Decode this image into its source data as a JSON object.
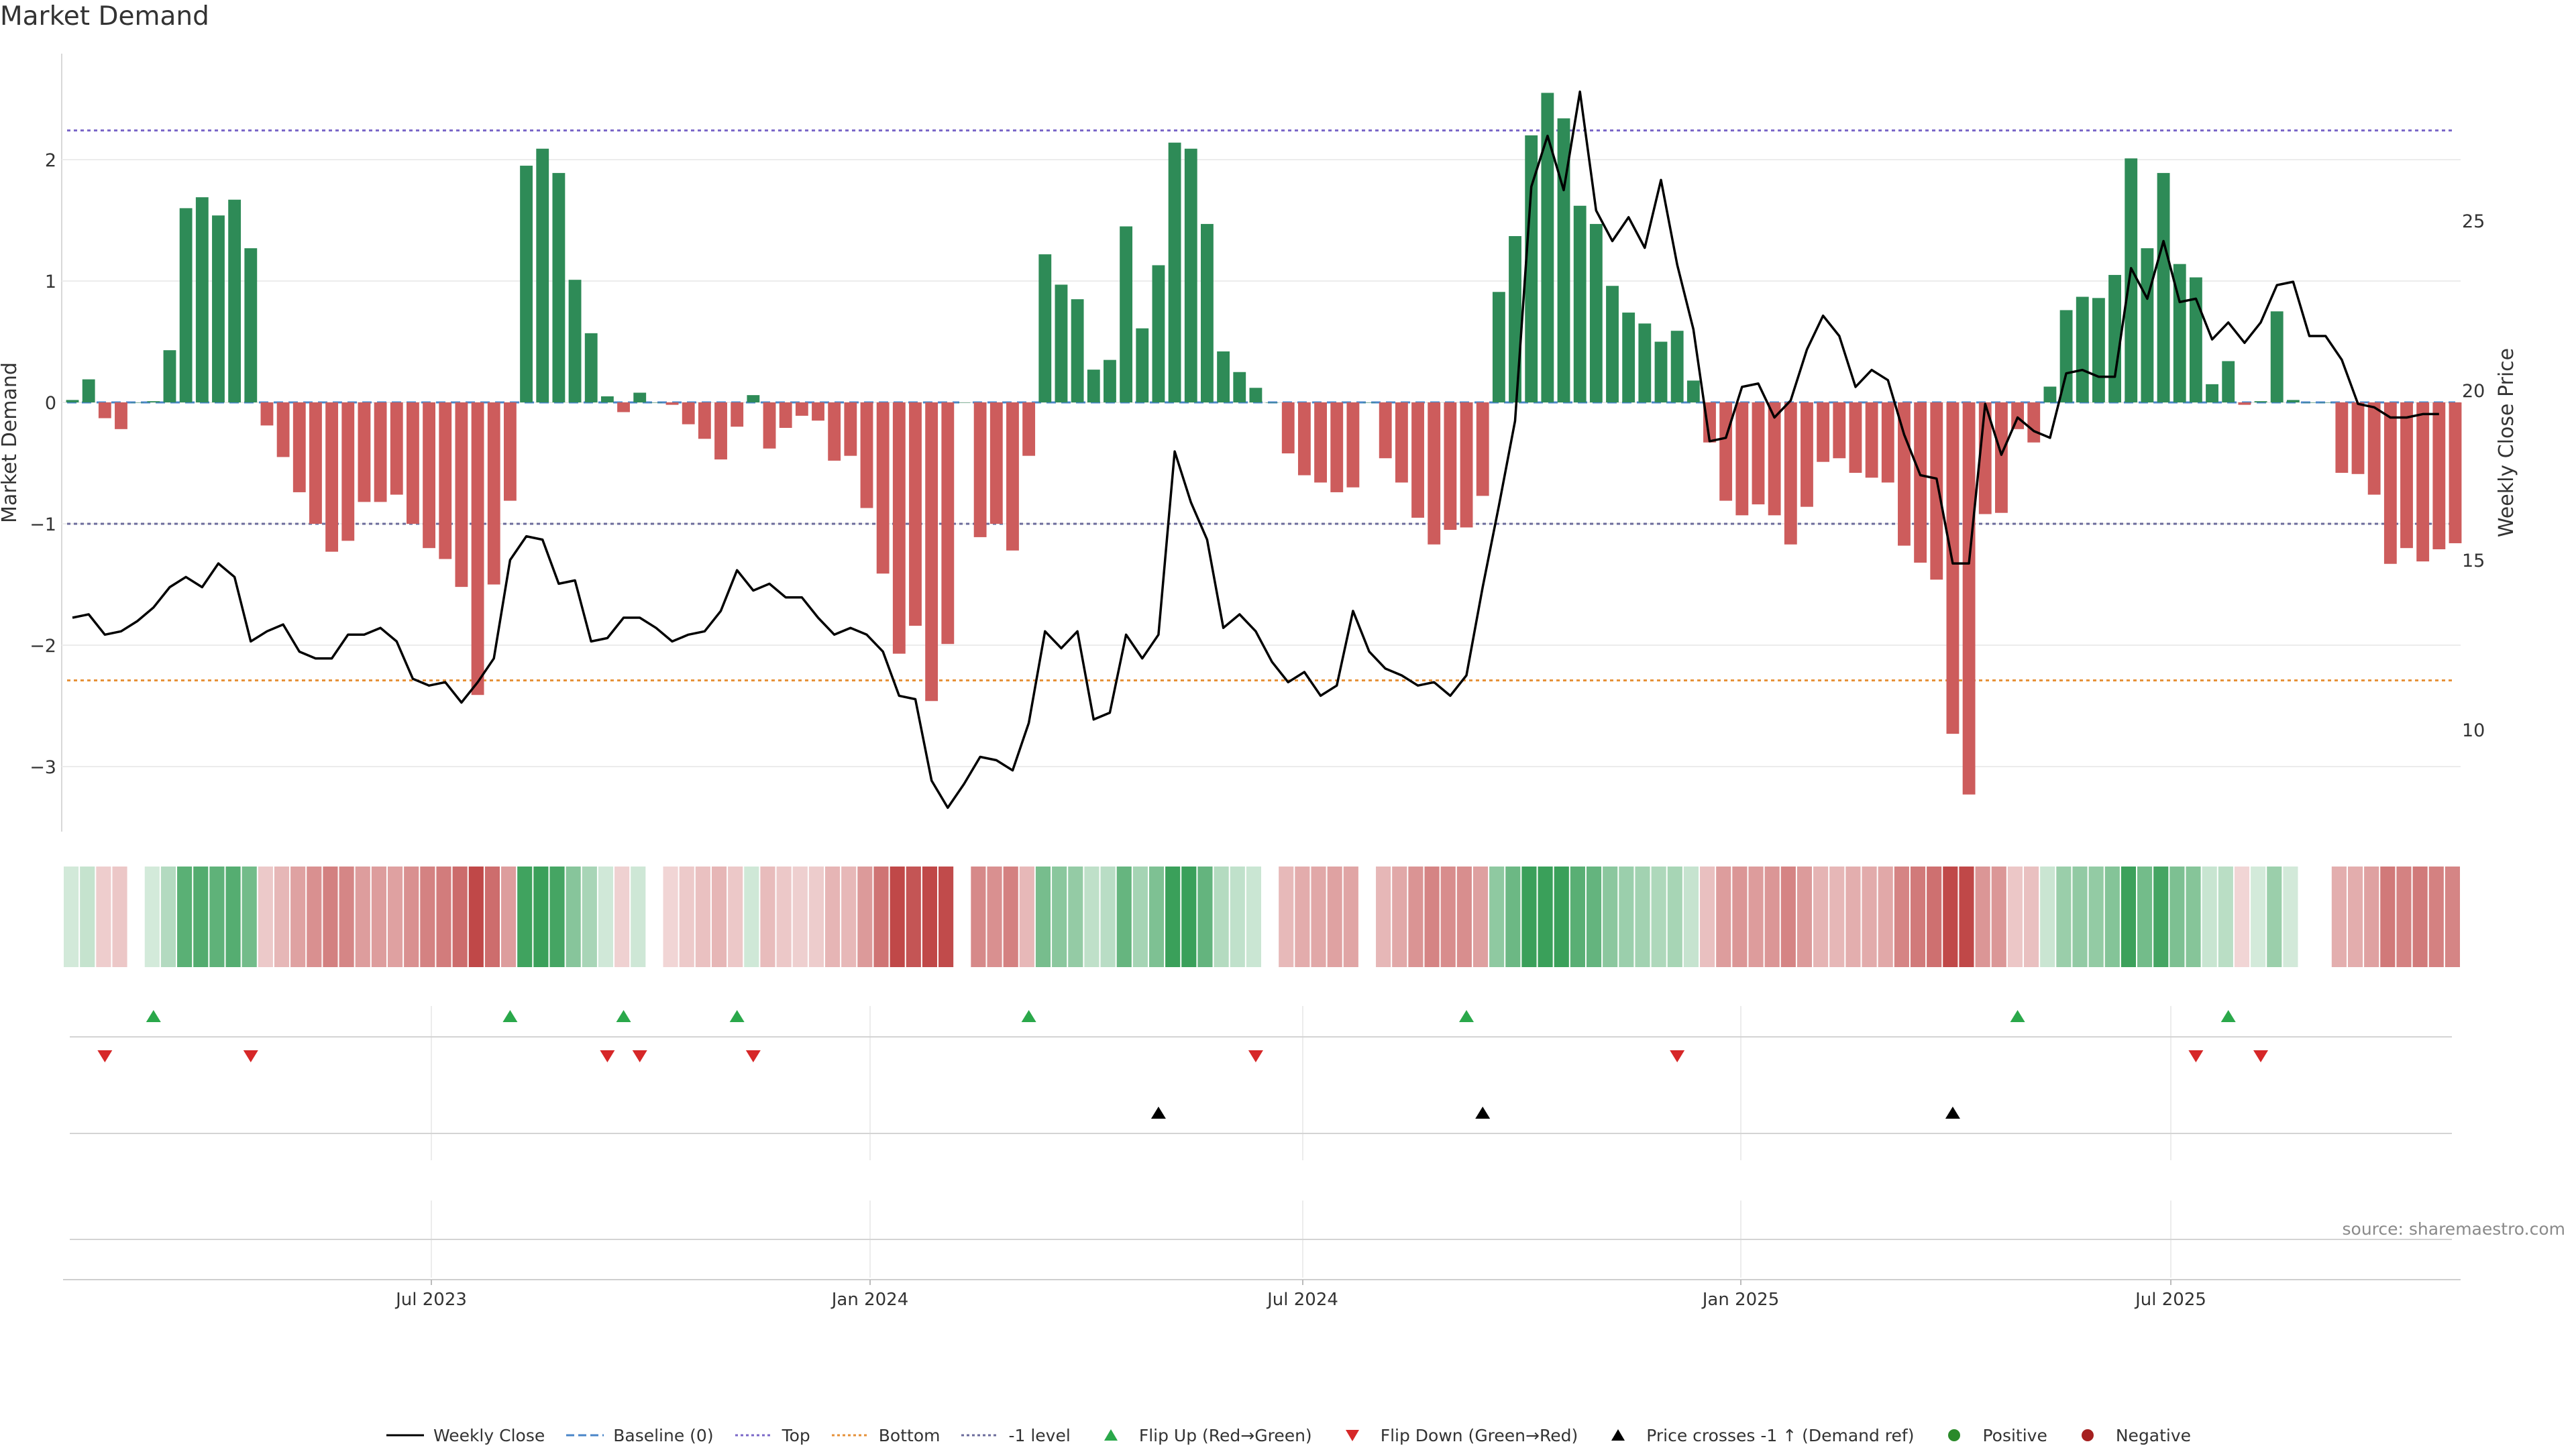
{
  "title": "Market Demand",
  "source": "source: sharemaestro.com",
  "colors": {
    "positive": "#2e8b57",
    "negative": "#cd5c5c",
    "price": "#000000",
    "top_line": "#7b68c8",
    "bottom_line": "#e69138",
    "baseline": "#4a86c8",
    "minus1_line": "#6b6b9b",
    "flip_up": "#2aa84a",
    "flip_down": "#d62728",
    "cross": "#000000",
    "pos_dot": "#2a8a2a",
    "neg_dot": "#a52020"
  },
  "legend": [
    {
      "label": "Weekly Close",
      "kind": "line-solid",
      "color": "#000000"
    },
    {
      "label": "Baseline (0)",
      "kind": "line-dash",
      "color": "#4a86c8"
    },
    {
      "label": "Top",
      "kind": "line-dot",
      "color": "#7b68c8"
    },
    {
      "label": "Bottom",
      "kind": "line-dot",
      "color": "#e69138"
    },
    {
      "label": "-1 level",
      "kind": "line-dot",
      "color": "#6b6b9b"
    },
    {
      "label": "Flip Up (Red→Green)",
      "kind": "tri-up",
      "color": "#2aa84a"
    },
    {
      "label": "Flip Down (Green→Red)",
      "kind": "tri-down",
      "color": "#d62728"
    },
    {
      "label": "Price crosses -1 ↑ (Demand ref)",
      "kind": "tri-up",
      "color": "#000000"
    },
    {
      "label": "Positive",
      "kind": "dot",
      "color": "#2a8a2a"
    },
    {
      "label": "Negative",
      "kind": "dot",
      "color": "#a52020"
    }
  ],
  "chart_data": {
    "type": "bar",
    "x_ticks": [
      "Jul 2023",
      "Jan 2024",
      "Jul 2024",
      "Jan 2025",
      "Jul 2025"
    ],
    "y_left": {
      "label": "Market Demand",
      "ticks": [
        2,
        1,
        0,
        -1,
        -2,
        -3
      ]
    },
    "y_right": {
      "label": "Weekly Close Price",
      "ticks": [
        25,
        20,
        15,
        10
      ]
    },
    "reference_lines": {
      "top": 2.24,
      "bottom": -2.29,
      "minus1": -1.0,
      "baseline": 0
    },
    "demand": [
      0.02,
      0.19,
      -0.13,
      -0.22,
      0,
      0.01,
      0.43,
      1.6,
      1.69,
      1.54,
      1.67,
      1.27,
      -0.19,
      -0.45,
      -0.74,
      -1.0,
      -1.23,
      -1.14,
      -0.82,
      -0.82,
      -0.76,
      -1.0,
      -1.2,
      -1.29,
      -1.52,
      -2.41,
      -1.5,
      -0.81,
      1.95,
      2.09,
      1.89,
      1.01,
      0.57,
      0.05,
      -0.08,
      0.08,
      0,
      -0.02,
      -0.18,
      -0.3,
      -0.47,
      -0.2,
      0.06,
      -0.38,
      -0.21,
      -0.11,
      -0.15,
      -0.48,
      -0.44,
      -0.87,
      -1.41,
      -2.07,
      -1.84,
      -2.46,
      -1.99,
      0,
      -1.11,
      -1.0,
      -1.22,
      -0.44,
      1.22,
      0.97,
      0.85,
      0.27,
      0.35,
      1.45,
      0.61,
      1.13,
      2.14,
      2.09,
      1.47,
      0.42,
      0.25,
      0.12,
      0,
      -0.42,
      -0.6,
      -0.66,
      -0.74,
      -0.7,
      0,
      -0.46,
      -0.66,
      -0.95,
      -1.17,
      -1.05,
      -1.03,
      -0.77,
      0.91,
      1.37,
      2.2,
      2.55,
      2.34,
      1.62,
      1.47,
      0.96,
      0.74,
      0.65,
      0.5,
      0.59,
      0.18,
      -0.33,
      -0.81,
      -0.93,
      -0.84,
      -0.93,
      -1.17,
      -0.86,
      -0.49,
      -0.46,
      -0.58,
      -0.62,
      -0.66,
      -1.18,
      -1.32,
      -1.46,
      -2.73,
      -3.23,
      -0.92,
      -0.91,
      -0.22,
      -0.33,
      0.13,
      0.76,
      0.87,
      0.86,
      1.05,
      2.01,
      1.27,
      1.89,
      1.14,
      1.03,
      0.15,
      0.34,
      -0.02,
      0.01,
      0.75,
      0.02,
      0,
      0,
      -0.58,
      -0.59,
      -0.76,
      -1.33,
      -1.2,
      -1.31,
      -1.21,
      -1.16
    ],
    "weekly_close": [
      13.3,
      13.4,
      12.8,
      12.9,
      13.2,
      13.6,
      14.2,
      14.5,
      14.2,
      14.9,
      14.5,
      12.6,
      12.9,
      13.1,
      12.3,
      12.1,
      12.1,
      12.8,
      12.8,
      13.0,
      12.6,
      11.5,
      11.3,
      11.4,
      10.8,
      11.4,
      12.1,
      15.0,
      15.7,
      15.6,
      14.3,
      14.4,
      12.6,
      12.7,
      13.3,
      13.3,
      13.0,
      12.6,
      12.8,
      12.9,
      13.5,
      14.7,
      14.1,
      14.3,
      13.9,
      13.9,
      13.3,
      12.8,
      13.0,
      12.8,
      12.3,
      11.0,
      10.9,
      8.5,
      7.7,
      8.4,
      9.2,
      9.1,
      8.8,
      10.2,
      12.9,
      12.4,
      12.9,
      10.3,
      10.5,
      12.8,
      12.1,
      12.8,
      18.2,
      16.7,
      15.6,
      13.0,
      13.4,
      12.9,
      12.0,
      11.4,
      11.7,
      11.0,
      11.3,
      13.5,
      12.3,
      11.8,
      11.6,
      11.3,
      11.4,
      11.0,
      11.6,
      14.2,
      16.6,
      19.1,
      26.0,
      27.5,
      25.9,
      28.8,
      25.3,
      24.4,
      25.1,
      24.2,
      26.2,
      23.7,
      21.8,
      18.5,
      18.6,
      20.1,
      20.2,
      19.2,
      19.7,
      21.2,
      22.2,
      21.6,
      20.1,
      20.6,
      20.3,
      18.7,
      17.5,
      17.4,
      14.9,
      14.9,
      19.6,
      18.1,
      19.2,
      18.8,
      18.6,
      20.5,
      20.6,
      20.4,
      20.4,
      23.6,
      22.7,
      24.4,
      22.6,
      22.7,
      21.5,
      22.0,
      21.4,
      22.0,
      23.1,
      23.2,
      21.6,
      21.6,
      20.9,
      19.6,
      19.5,
      19.2,
      19.2,
      19.3,
      19.3
    ],
    "flip_up": [
      5,
      27,
      34,
      41,
      59,
      86,
      120,
      133
    ],
    "flip_down": [
      2,
      11,
      33,
      35,
      42,
      73,
      99,
      131,
      135
    ],
    "price_cross": [
      67,
      87,
      116
    ]
  }
}
